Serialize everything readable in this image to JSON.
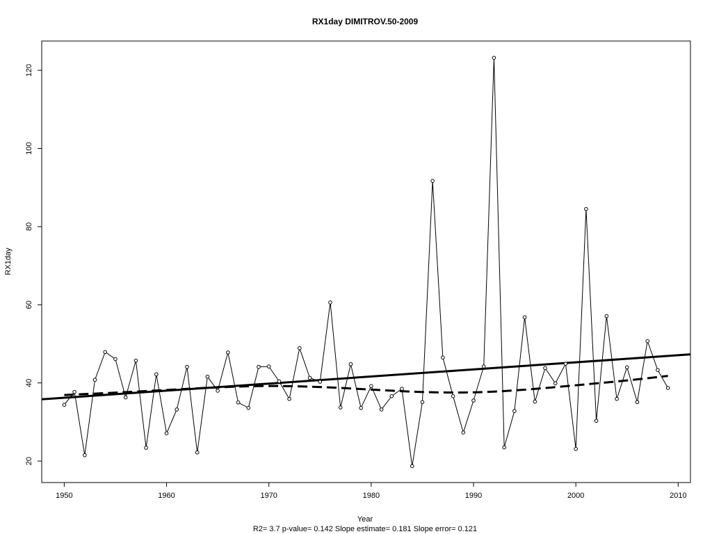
{
  "chart_data": {
    "type": "line",
    "title": "RX1day   DIMITROV.50-2009",
    "xlabel": "Year",
    "ylabel": "RX1day",
    "footer": "R2= 3.7  p-value= 0.142  Slope estimate= 0.181  Slope error= 0.121",
    "xlim": [
      1947.8,
      2011.2
    ],
    "ylim": [
      14.5,
      127.5
    ],
    "x_ticks": [
      1950,
      1960,
      1970,
      1980,
      1990,
      2000,
      2010
    ],
    "y_ticks": [
      20,
      40,
      60,
      80,
      100,
      120
    ],
    "grid": false,
    "series": [
      {
        "x": [
          1950,
          1951,
          1952,
          1953,
          1954,
          1955,
          1956,
          1957,
          1958,
          1959,
          1960,
          1961,
          1962,
          1963,
          1964,
          1965,
          1966,
          1967,
          1968,
          1969,
          1970,
          1971,
          1972,
          1973,
          1974,
          1975,
          1976,
          1977,
          1978,
          1979,
          1980,
          1981,
          1982,
          1983,
          1984,
          1985,
          1986,
          1987,
          1988,
          1989,
          1990,
          1991,
          1992,
          1993,
          1994,
          1995,
          1996,
          1997,
          1998,
          1999,
          2000,
          2001,
          2002,
          2003,
          2004,
          2005,
          2006,
          2007,
          2008,
          2009
        ],
        "values": [
          34.4,
          37.7,
          21.5,
          40.8,
          47.9,
          46.1,
          36.3,
          45.7,
          23.4,
          42.2,
          27.1,
          33.2,
          44.1,
          22.2,
          41.6,
          38.0,
          47.8,
          35.0,
          33.6,
          44.1,
          44.2,
          40.4,
          35.9,
          48.9,
          41.3,
          40.3,
          60.6,
          33.7,
          44.8,
          33.6,
          39.2,
          33.2,
          36.6,
          38.5,
          18.7,
          35.1,
          91.7,
          46.5,
          36.6,
          27.3,
          35.5,
          44.2,
          123.2,
          23.5,
          32.8,
          56.8,
          35.2,
          43.8,
          39.9,
          44.9,
          23.1,
          84.5,
          30.3,
          57.1,
          35.9,
          44.0,
          35.1,
          50.7,
          43.3,
          38.7
        ]
      }
    ],
    "trend_line": {
      "x": [
        1947.8,
        2011.2
      ],
      "values": [
        35.8,
        47.3
      ]
    },
    "smooth_line": {
      "x": [
        1950,
        1955,
        1960,
        1965,
        1970,
        1975,
        1980,
        1985,
        1990,
        1995,
        2000,
        2005,
        2009
      ],
      "values": [
        36.9,
        37.5,
        38.2,
        38.9,
        39.3,
        39.0,
        38.3,
        37.6,
        37.5,
        38.2,
        39.4,
        40.6,
        41.8
      ]
    }
  }
}
